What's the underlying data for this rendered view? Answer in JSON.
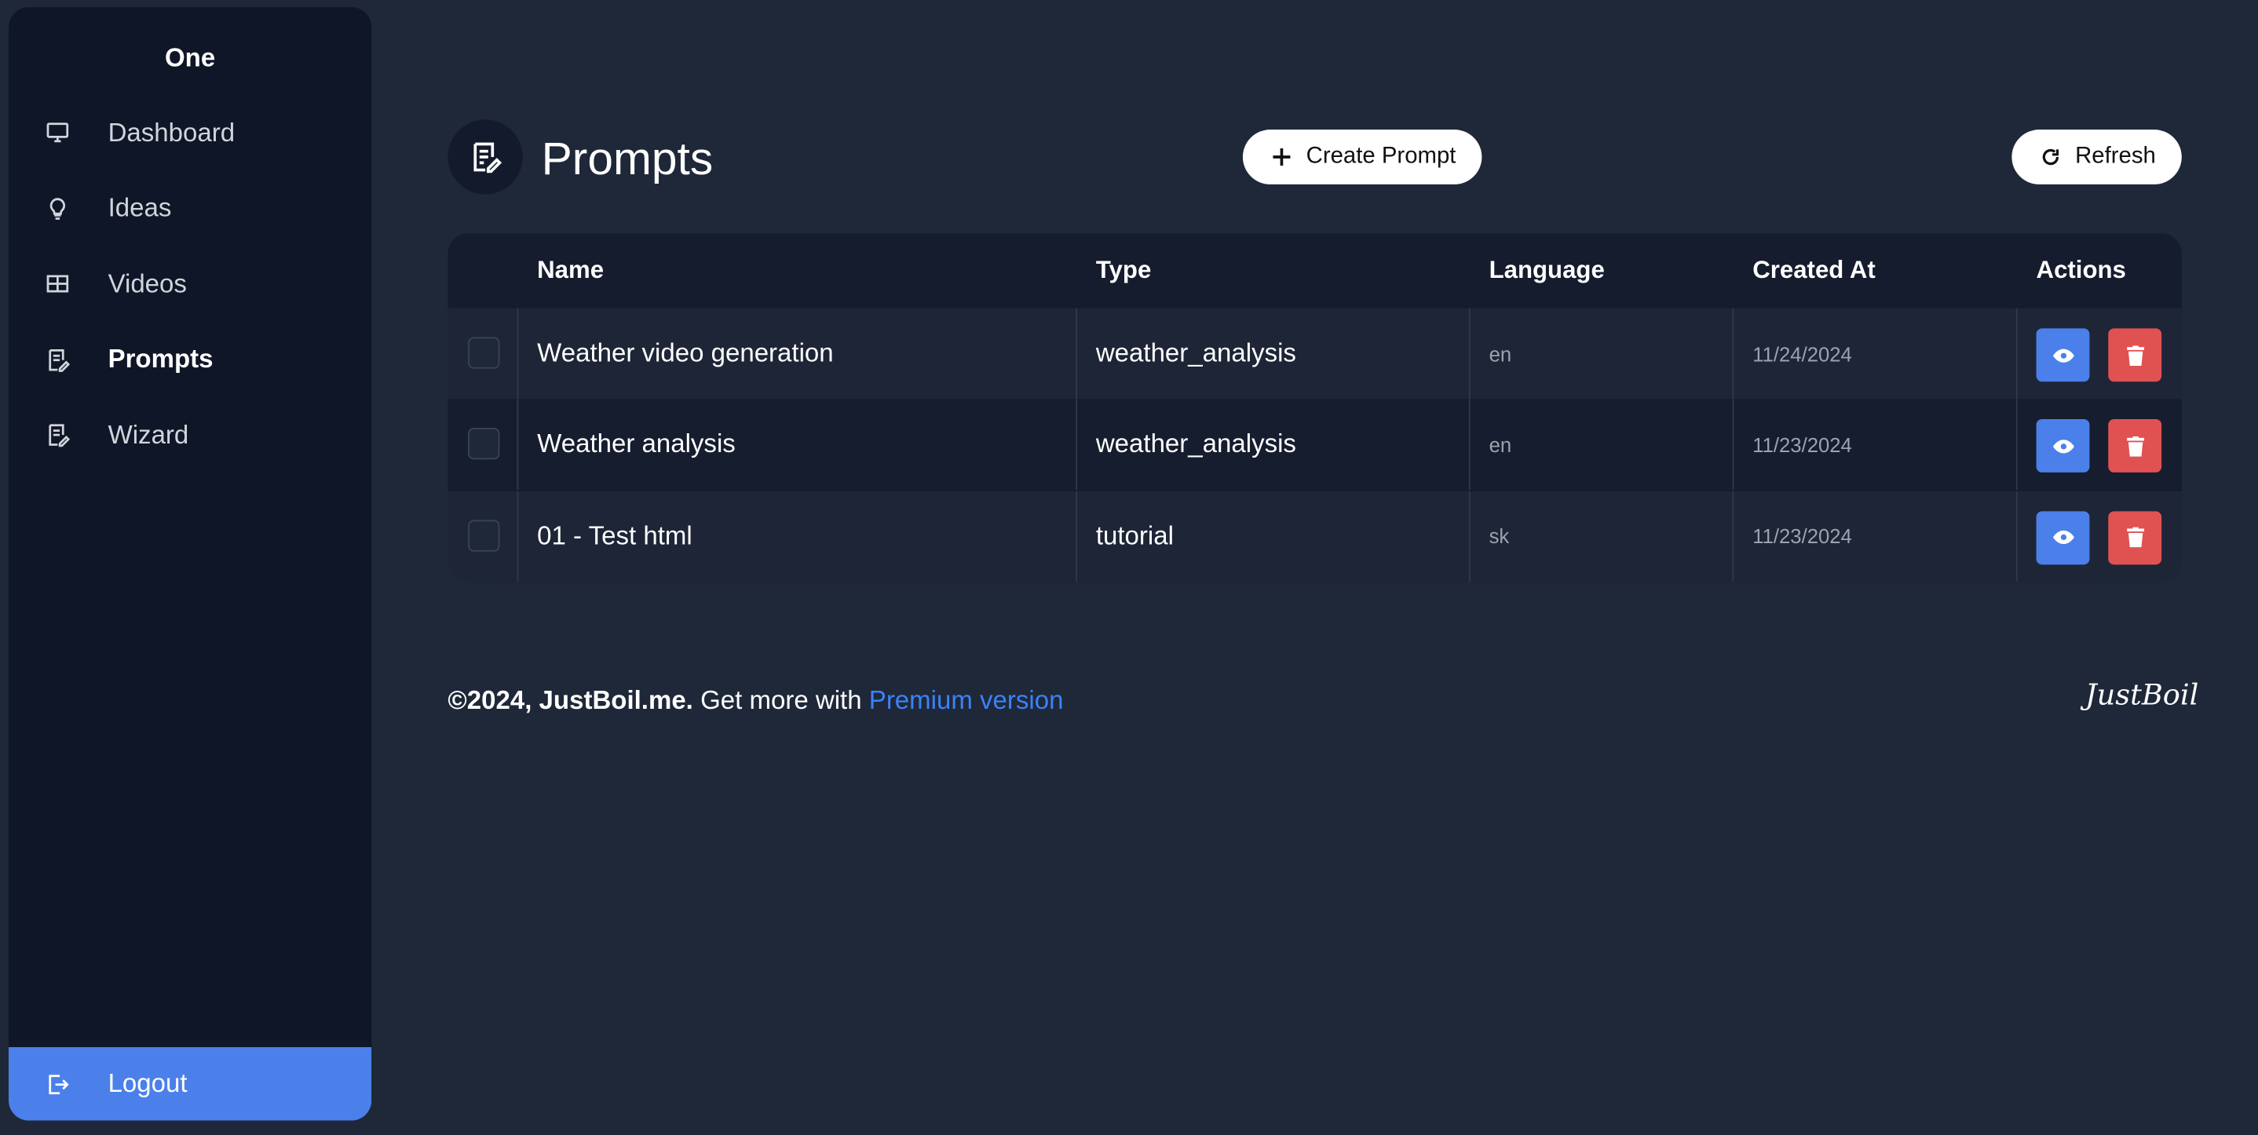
{
  "sidebar": {
    "brand": "One",
    "items": [
      "Dashboard",
      "Ideas",
      "Videos",
      "Prompts",
      "Wizard"
    ],
    "active": 3,
    "logout": "Logout"
  },
  "header": {
    "title": "Prompts",
    "create_button": "Create Prompt",
    "refresh_button": "Refresh"
  },
  "table": {
    "columns": [
      "Name",
      "Type",
      "Language",
      "Created At",
      "Actions"
    ],
    "rows": [
      [
        "Weather video generation",
        "weather_analysis",
        "en",
        "11/24/2024"
      ],
      [
        "Weather analysis",
        "weather_analysis",
        "en",
        "11/23/2024"
      ],
      [
        "01 - Test html",
        "tutorial",
        "sk",
        "11/23/2024"
      ]
    ]
  },
  "footer": {
    "copyright": "©2024, JustBoil.me.",
    "text": "Get more with",
    "link": "Premium version",
    "logo": "JustBoil"
  }
}
